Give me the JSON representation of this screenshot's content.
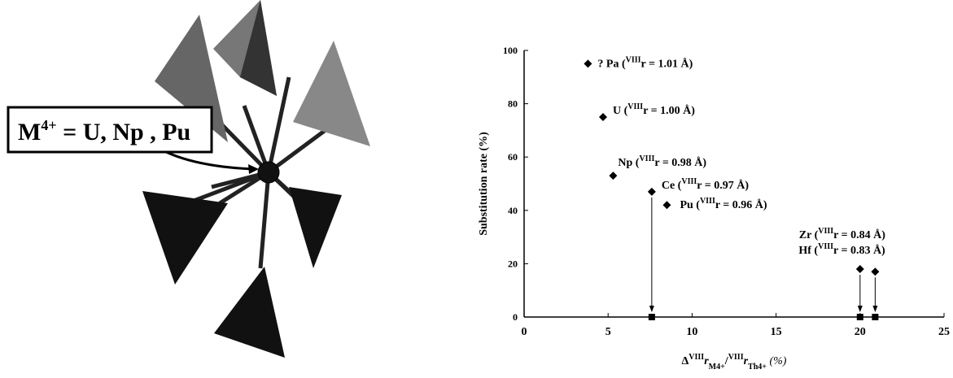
{
  "diagram_label": {
    "main": "M",
    "sup": "4+",
    "rest": " = U, Np , Pu"
  },
  "chart_data": {
    "type": "scatter",
    "ylabel": "Substitution rate (%)",
    "xlabel": {
      "delta": "Δ",
      "sup1": "VIII",
      "r1": "r",
      "sub1": "M4+",
      "slash": "/",
      "sup2": "VIII",
      "r2": "r",
      "sub2": "Th4+",
      "unit": " (%)"
    },
    "xlim": [
      0,
      25
    ],
    "xticks": [
      0,
      5,
      10,
      15,
      20,
      25
    ],
    "ylim": [
      0,
      100
    ],
    "yticks": [
      0,
      20,
      40,
      60,
      80,
      100
    ],
    "series": [
      {
        "marker": "diamond",
        "color": "#000000",
        "x": [
          3.8,
          4.7,
          5.3,
          7.6,
          8.5,
          20,
          20.9
        ],
        "values": [
          95,
          75,
          53,
          47,
          42,
          18,
          17
        ],
        "point_labels": [
          {
            "pre": "? Pa (",
            "sup": "VIII",
            "post": "r = 1.01 Å)"
          },
          {
            "pre": "U (",
            "sup": "VIII",
            "post": "r = 1.00 Å)"
          },
          {
            "pre": "Np (",
            "sup": "VIII",
            "post": "r = 0.98 Å)"
          },
          {
            "pre": "Ce (",
            "sup": "VIII",
            "post": "r = 0.97 Å)"
          },
          {
            "pre": "Pu (",
            "sup": "VIII",
            "post": "r = 0.96 Å)"
          },
          {
            "pre": "Zr (",
            "sup": "VIII",
            "post": "r = 0.84 Å)"
          },
          {
            "pre": "Hf (",
            "sup": "VIII",
            "post": "r = 0.83 Å)"
          }
        ]
      },
      {
        "marker": "square",
        "color": "#000000",
        "x": [
          7.6,
          20,
          20.9
        ],
        "values": [
          0,
          0,
          0
        ]
      }
    ]
  }
}
